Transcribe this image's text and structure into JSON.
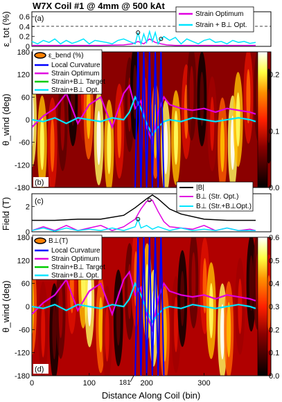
{
  "title": "W7X Coil #1 @ 4mm @ 500 kAt",
  "xlabel": "Distance Along Coil (bin)",
  "annotation_181": "181",
  "colors": {
    "local_curvature": "#0000ff",
    "strain_optimum": "#e000e0",
    "strain_b_target": "#00cc00",
    "strain_b_opt": "#00e5ff",
    "field_b": "#000000"
  },
  "chart_data": [
    {
      "type": "line",
      "panel": "(a)",
      "ylabel": "ε_tot (%)",
      "ylim": [
        0,
        0.7
      ],
      "yticks": [
        "0",
        "0.2",
        "0.4",
        "0.6"
      ],
      "xlim": [
        0,
        390
      ],
      "limit_line": 0.4,
      "legend": [
        "Strain Optimum",
        "Strain + B⊥ Opt."
      ],
      "series": [
        {
          "name": "Strain Optimum",
          "x": [
            0,
            40,
            80,
            120,
            160,
            175,
            185,
            195,
            205,
            215,
            225,
            235,
            250,
            290,
            330,
            370,
            390
          ],
          "y": [
            0.02,
            0.02,
            0.02,
            0.02,
            0.03,
            0.05,
            0.1,
            0.05,
            0.15,
            0.08,
            0.05,
            0.03,
            0.02,
            0.02,
            0.02,
            0.02,
            0.02
          ]
        },
        {
          "name": "Strain + B⊥ Opt.",
          "x": [
            0,
            10,
            20,
            30,
            40,
            50,
            60,
            70,
            80,
            90,
            100,
            110,
            120,
            130,
            140,
            150,
            160,
            170,
            180,
            185,
            190,
            195,
            200,
            205,
            210,
            215,
            220,
            225,
            230,
            240,
            250,
            260,
            270,
            280,
            290,
            300,
            310,
            320,
            330,
            340,
            350,
            360,
            370,
            380,
            390
          ],
          "y": [
            0.1,
            0.05,
            0.12,
            0.08,
            0.15,
            0.05,
            0.12,
            0.06,
            0.1,
            0.15,
            0.05,
            0.12,
            0.1,
            0.08,
            0.05,
            0.12,
            0.15,
            0.1,
            0.05,
            0.28,
            0.05,
            0.25,
            0.08,
            0.3,
            0.1,
            0.28,
            0.05,
            0.15,
            0.2,
            0.12,
            0.18,
            0.05,
            0.15,
            0.1,
            0.05,
            0.12,
            0.15,
            0.08,
            0.1,
            0.05,
            0.12,
            0.08,
            0.1,
            0.06,
            0.08
          ]
        }
      ],
      "markers": [
        {
          "x": 185,
          "y": 0.28
        },
        {
          "x": 225,
          "y": 0.15
        }
      ]
    },
    {
      "type": "heatmap",
      "panel": "(b)",
      "ylabel": "θ_wind (deg)",
      "ylim": [
        -180,
        180
      ],
      "yticks": [
        "-180",
        "-120",
        "-60",
        "0",
        "60",
        "120",
        "180"
      ],
      "xlim": [
        0,
        390
      ],
      "colorbar_title": "ε_bend (%)",
      "colorbar_ticks": [
        "0.0",
        "0.1",
        "0.2"
      ],
      "colorbar_range": [
        0,
        0.24
      ],
      "legend": [
        "Local Curvature",
        "Strain Optimum",
        "Strain+B⊥ Target",
        "Strain+B⊥ Opt."
      ],
      "series": [
        {
          "name": "Strain Optimum",
          "x": [
            0,
            20,
            40,
            60,
            80,
            100,
            120,
            140,
            160,
            170,
            180,
            190,
            200,
            210,
            220,
            230,
            240,
            260,
            280,
            300,
            320,
            340,
            360,
            380,
            390
          ],
          "y": [
            -20,
            10,
            30,
            70,
            -10,
            40,
            60,
            -20,
            70,
            90,
            30,
            50,
            -20,
            -60,
            20,
            60,
            40,
            30,
            25,
            30,
            20,
            30,
            25,
            20,
            15
          ]
        },
        {
          "name": "Strain+B⊥ Opt.",
          "x": [
            0,
            20,
            40,
            60,
            80,
            100,
            120,
            140,
            160,
            170,
            180,
            190,
            200,
            210,
            220,
            230,
            240,
            260,
            280,
            300,
            320,
            340,
            360,
            380,
            390
          ],
          "y": [
            0,
            -5,
            5,
            -10,
            5,
            0,
            -5,
            5,
            0,
            20,
            60,
            30,
            -10,
            -40,
            -20,
            -5,
            0,
            -5,
            5,
            0,
            -5,
            0,
            5,
            0,
            -5
          ]
        },
        {
          "name": "Local Curvature",
          "x": [
            180,
            185,
            190,
            195,
            200,
            205,
            210,
            215,
            220,
            225,
            230
          ],
          "y": [
            -180,
            180,
            -180,
            180,
            -180,
            180,
            -180,
            180,
            -180,
            180,
            -180
          ]
        }
      ]
    },
    {
      "type": "line",
      "panel": "(c)",
      "ylabel": "Field (T)",
      "ylim": [
        0,
        3
      ],
      "yticks": [
        "0",
        "2"
      ],
      "xlim": [
        0,
        390
      ],
      "legend": [
        "|B|",
        "B⊥ (Str. Opt.)",
        "B⊥ (Str.+B⊥Opt.)"
      ],
      "series": [
        {
          "name": "|B|",
          "x": [
            0,
            40,
            80,
            120,
            160,
            180,
            200,
            210,
            220,
            240,
            260,
            300,
            340,
            390
          ],
          "y": [
            0.9,
            0.9,
            1.0,
            1.0,
            1.3,
            1.9,
            2.6,
            2.9,
            2.6,
            1.8,
            1.4,
            1.0,
            0.9,
            0.9
          ]
        },
        {
          "name": "B⊥ (Str. Opt.)",
          "x": [
            0,
            20,
            40,
            60,
            80,
            100,
            120,
            140,
            160,
            180,
            190,
            200,
            210,
            220,
            230,
            240,
            260,
            280,
            300,
            320,
            340,
            360,
            380,
            390
          ],
          "y": [
            0.1,
            0.4,
            0.1,
            0.5,
            0.1,
            0.3,
            0.5,
            0.1,
            0.4,
            1.0,
            1.8,
            2.4,
            2.5,
            1.6,
            0.8,
            0.4,
            0.3,
            0.2,
            0.5,
            0.1,
            0.3,
            0.1,
            0.2,
            0.1
          ]
        },
        {
          "name": "B⊥ (Str.+B⊥Opt.)",
          "x": [
            0,
            20,
            40,
            60,
            80,
            100,
            120,
            140,
            160,
            180,
            185,
            190,
            200,
            210,
            220,
            240,
            260,
            280,
            300,
            320,
            340,
            360,
            390
          ],
          "y": [
            0.1,
            0.3,
            0.05,
            0.3,
            0.1,
            0.2,
            0.1,
            0.3,
            0.1,
            0.4,
            1.0,
            0.3,
            0.5,
            0.2,
            0.4,
            0.1,
            0.3,
            0.1,
            0.2,
            0.1,
            0.3,
            0.1,
            0.1
          ]
        }
      ],
      "markers": [
        {
          "x": 185,
          "y": 1.0
        },
        {
          "x": 205,
          "y": 2.5
        }
      ]
    },
    {
      "type": "heatmap",
      "panel": "(d)",
      "ylabel": "θ_wind (deg)",
      "ylim": [
        -180,
        180
      ],
      "yticks": [
        "-180",
        "-120",
        "-60",
        "0",
        "60",
        "120",
        "180"
      ],
      "xlim": [
        0,
        390
      ],
      "xticks": [
        "0",
        "100",
        "200",
        "300"
      ],
      "colorbar_title": "B⊥(T)",
      "colorbar_ticks": [
        "0.0",
        "0.1",
        "0.2",
        "0.3",
        "0.4",
        "0.5",
        "0.6"
      ],
      "colorbar_range": [
        0,
        0.6
      ],
      "legend": [
        "Local Curvature",
        "Strain Optimum",
        "Strain+B⊥ Target",
        "Strain+B⊥ Opt."
      ],
      "series": [
        {
          "name": "Strain Optimum",
          "x": [
            0,
            20,
            40,
            60,
            80,
            100,
            120,
            140,
            160,
            170,
            180,
            190,
            200,
            210,
            220,
            230,
            240,
            260,
            280,
            300,
            320,
            340,
            360,
            380,
            390
          ],
          "y": [
            -20,
            10,
            30,
            70,
            -10,
            40,
            60,
            -20,
            70,
            90,
            30,
            50,
            -20,
            -60,
            20,
            60,
            40,
            30,
            25,
            30,
            20,
            30,
            25,
            20,
            15
          ]
        },
        {
          "name": "Strain+B⊥ Opt.",
          "x": [
            0,
            20,
            40,
            60,
            80,
            100,
            120,
            140,
            160,
            170,
            180,
            190,
            200,
            210,
            220,
            230,
            240,
            260,
            280,
            300,
            320,
            340,
            360,
            380,
            390
          ],
          "y": [
            0,
            -5,
            5,
            -10,
            5,
            0,
            -5,
            5,
            0,
            20,
            60,
            30,
            -10,
            -40,
            -20,
            -5,
            0,
            -5,
            5,
            0,
            -5,
            0,
            5,
            0,
            -5
          ]
        },
        {
          "name": "Local Curvature",
          "x": [
            180,
            185,
            190,
            195,
            200,
            205,
            210,
            215,
            220,
            225,
            230
          ],
          "y": [
            -180,
            180,
            -180,
            180,
            -180,
            180,
            -180,
            180,
            -180,
            180,
            -180
          ]
        }
      ]
    }
  ]
}
